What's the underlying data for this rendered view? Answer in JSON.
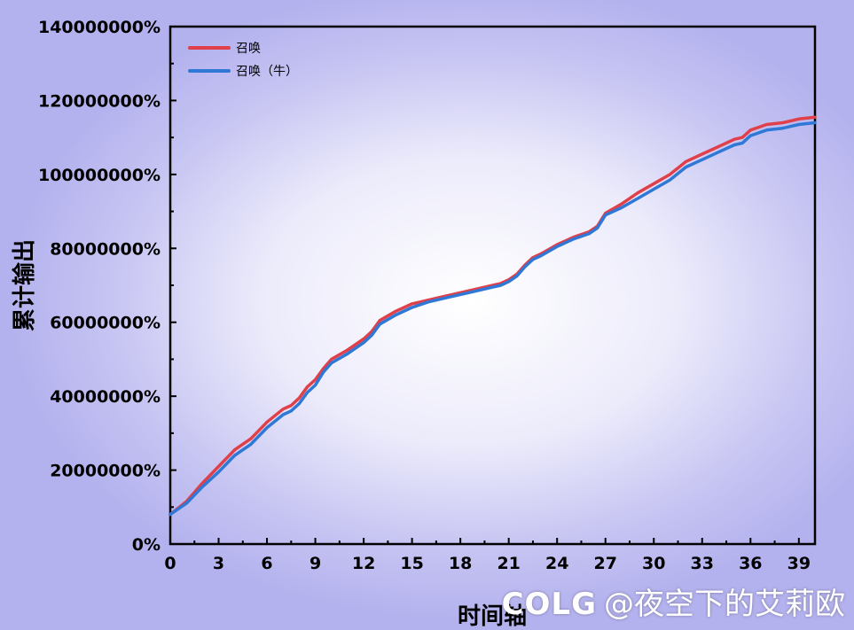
{
  "chart_data": {
    "type": "line",
    "title": "",
    "xlabel": "时间轴",
    "ylabel": "累计输出",
    "xlim": [
      0,
      40
    ],
    "ylim": [
      0,
      140000000
    ],
    "x_ticks": [
      0,
      3,
      6,
      9,
      12,
      15,
      18,
      21,
      24,
      27,
      30,
      33,
      36,
      39
    ],
    "x_tick_labels": [
      "0",
      "3",
      "6",
      "9",
      "12",
      "15",
      "18",
      "21",
      "24",
      "27",
      "30",
      "33",
      "36",
      "39"
    ],
    "y_ticks": [
      0,
      20000000,
      40000000,
      60000000,
      80000000,
      100000000,
      120000000,
      140000000
    ],
    "y_tick_labels": [
      "0%",
      "20000000%",
      "40000000%",
      "60000000%",
      "80000000%",
      "100000000%",
      "120000000%",
      "140000000%"
    ],
    "grid": false,
    "legend_position": "top-left",
    "series": [
      {
        "name": "召唤",
        "color": "#e0404a",
        "x": [
          0,
          1,
          2,
          3,
          4,
          5,
          6,
          7,
          7.5,
          8,
          8.5,
          9,
          9.5,
          10,
          11,
          12,
          12.5,
          13,
          14,
          15,
          16,
          17,
          18,
          19,
          20,
          20.5,
          21,
          21.5,
          22,
          22.5,
          23,
          24,
          25,
          26,
          26.5,
          27,
          28,
          29,
          30,
          31,
          32,
          33,
          34,
          35,
          35.5,
          36,
          37,
          38,
          39,
          40
        ],
        "y": [
          8000000,
          11500000,
          16500000,
          21000000,
          25500000,
          28500000,
          33000000,
          36500000,
          37500000,
          39500000,
          42500000,
          44500000,
          47500000,
          50000000,
          52500000,
          55500000,
          57500000,
          60500000,
          63000000,
          65000000,
          66000000,
          67000000,
          68000000,
          69000000,
          70000000,
          70500000,
          71500000,
          73000000,
          75500000,
          77500000,
          78500000,
          81000000,
          83000000,
          84500000,
          86000000,
          89500000,
          92000000,
          95000000,
          97500000,
          100000000,
          103500000,
          105500000,
          107500000,
          109500000,
          110000000,
          112000000,
          113500000,
          114000000,
          115000000,
          115500000
        ]
      },
      {
        "name": "召唤（牛）",
        "color": "#2f78d6",
        "x": [
          0,
          1,
          2,
          3,
          4,
          5,
          6,
          7,
          7.5,
          8,
          8.5,
          9,
          9.5,
          10,
          11,
          12,
          12.5,
          13,
          14,
          15,
          16,
          17,
          18,
          19,
          20,
          20.5,
          21,
          21.5,
          22,
          22.5,
          23,
          24,
          25,
          26,
          26.5,
          27,
          28,
          29,
          30,
          31,
          32,
          33,
          34,
          35,
          35.5,
          36,
          37,
          38,
          39,
          40
        ],
        "y": [
          8000000,
          11000000,
          15500000,
          19500000,
          24000000,
          27000000,
          31500000,
          35000000,
          36000000,
          38000000,
          41000000,
          43000000,
          46500000,
          49000000,
          51500000,
          54500000,
          56500000,
          59500000,
          62000000,
          64000000,
          65500000,
          66500000,
          67500000,
          68500000,
          69500000,
          70000000,
          71000000,
          72500000,
          75000000,
          77000000,
          78000000,
          80500000,
          82500000,
          84000000,
          85500000,
          89000000,
          91000000,
          93500000,
          96000000,
          98500000,
          102000000,
          104000000,
          106000000,
          108000000,
          108500000,
          110500000,
          112000000,
          112500000,
          113500000,
          114000000
        ]
      }
    ]
  },
  "watermark": {
    "logo": "COLG",
    "text": "@夜空下的艾莉欧"
  }
}
